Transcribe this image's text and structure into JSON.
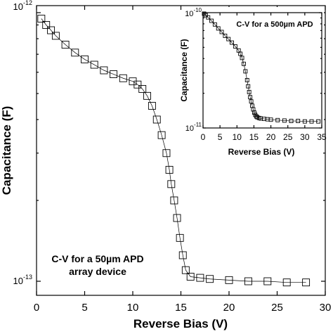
{
  "chart_data": [
    {
      "id": "main",
      "type": "line",
      "markers": "open-square",
      "xlabel": "Reverse Bias (V)",
      "ylabel": "Capacitance (F)",
      "xlim": [
        0,
        30
      ],
      "ylim": [
        9.2e-14,
        1e-12
      ],
      "yscale": "log",
      "x_ticks": [
        0,
        5,
        10,
        15,
        20,
        25,
        30
      ],
      "y_tick_labels": [
        {
          "value": 1e-12,
          "base": "10",
          "exp": "-12"
        },
        {
          "value": 1e-13,
          "base": "10",
          "exp": "-13"
        }
      ],
      "annotation": [
        "C-V for a 50µm APD",
        "array device"
      ],
      "series": [
        {
          "x": [
            0.5,
            1.0,
            1.5,
            2.0,
            3.0,
            4.0,
            5.0,
            6.0,
            7.0,
            8.0,
            9.0,
            10.0,
            10.5,
            11.0,
            11.5,
            12.0,
            12.5,
            13.0,
            13.5,
            13.8,
            14.0,
            14.3,
            14.6,
            14.9,
            15.2,
            15.5,
            16.0,
            17.0,
            18.0,
            20.0,
            22.0,
            24.0,
            26.0,
            28.0
          ],
          "y": [
            9.5e-13,
            9e-13,
            8.6e-13,
            8.2e-13,
            7.6e-13,
            7.1e-13,
            6.7e-13,
            6.4e-13,
            6.1e-13,
            5.9e-13,
            5.7e-13,
            5.55e-13,
            5.4e-13,
            5.2e-13,
            4.9e-13,
            4.5e-13,
            4e-13,
            3.5e-13,
            3e-13,
            2.6e-13,
            2.3e-13,
            2e-13,
            1.72e-13,
            1.45e-13,
            1.25e-13,
            1.1e-13,
            1.04e-13,
            1.03e-13,
            1.02e-13,
            1.01e-13,
            1e-13,
            1e-13,
            9.9e-14,
            9.9e-14
          ]
        }
      ]
    },
    {
      "id": "inset",
      "type": "line",
      "markers": "open-square",
      "title": "C-V for a 500µm APD",
      "xlabel": "Reverse Bias (V)",
      "ylabel": "Capacitance (F)",
      "xlim": [
        0,
        35
      ],
      "ylim": [
        1e-11,
        1e-10
      ],
      "yscale": "log",
      "x_ticks": [
        0,
        5,
        10,
        15,
        20,
        25,
        30,
        35
      ],
      "y_tick_labels": [
        {
          "value": 1e-10,
          "base": "10",
          "exp": "-10"
        },
        {
          "value": 1e-11,
          "base": "10",
          "exp": "-11"
        }
      ],
      "series": [
        {
          "x": [
            0.3,
            0.8,
            1.5,
            2.5,
            3.5,
            4.5,
            5.5,
            6.5,
            7.5,
            8.5,
            9.5,
            10.5,
            11.0,
            11.5,
            12.0,
            12.5,
            13.0,
            13.3,
            13.6,
            13.9,
            14.2,
            14.5,
            14.8,
            15.1,
            15.4,
            15.7,
            16.0,
            16.5,
            17.0,
            18.0,
            19.0,
            20.0,
            22.0,
            24.0,
            26.0,
            28.0,
            30.0,
            32.0,
            34.0
          ],
          "y": [
            9.8e-11,
            9.5e-11,
            9.1e-11,
            8.5e-11,
            7.9e-11,
            7.3e-11,
            6.8e-11,
            6.3e-11,
            5.9e-11,
            5.5e-11,
            5.1e-11,
            4.7e-11,
            4.4e-11,
            4.05e-11,
            3.6e-11,
            3.1e-11,
            2.6e-11,
            2.3e-11,
            2.05e-11,
            1.85e-11,
            1.7e-11,
            1.56e-11,
            1.45e-11,
            1.36e-11,
            1.3e-11,
            1.26e-11,
            1.24e-11,
            1.22e-11,
            1.21e-11,
            1.2e-11,
            1.19e-11,
            1.18e-11,
            1.17e-11,
            1.16e-11,
            1.15e-11,
            1.15e-11,
            1.14e-11,
            1.14e-11,
            1.14e-11
          ]
        }
      ]
    }
  ]
}
